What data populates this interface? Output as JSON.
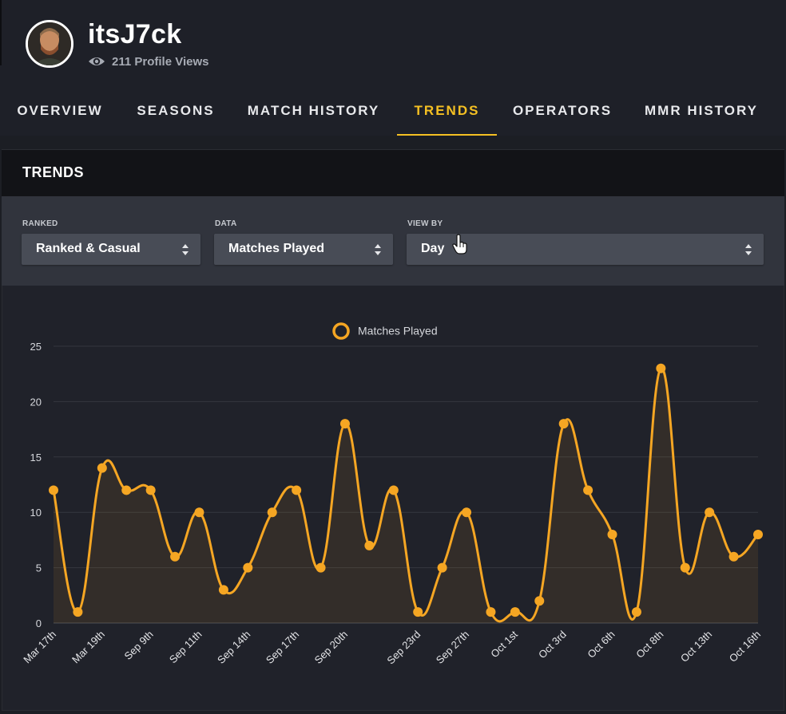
{
  "profile": {
    "username": "itsJ7ck",
    "views_text": "211 Profile Views"
  },
  "tabs": [
    {
      "label": "OVERVIEW",
      "active": false
    },
    {
      "label": "SEASONS",
      "active": false
    },
    {
      "label": "MATCH HISTORY",
      "active": false
    },
    {
      "label": "TRENDS",
      "active": true
    },
    {
      "label": "OPERATORS",
      "active": false
    },
    {
      "label": "MMR HISTORY",
      "active": false
    }
  ],
  "panel": {
    "title": "TRENDS"
  },
  "filters": {
    "ranked": {
      "label": "RANKED",
      "value": "Ranked & Casual"
    },
    "data": {
      "label": "DATA",
      "value": "Matches Played"
    },
    "view_by": {
      "label": "VIEW BY",
      "value": "Day"
    }
  },
  "colors": {
    "accent": "#f5c023",
    "series": "#f5a623"
  },
  "icons": {
    "views": "eye-icon",
    "select": "sort-arrows-icon",
    "cursor": "hand-pointer-icon"
  },
  "chart_data": {
    "type": "line",
    "legend": {
      "entries": [
        "Matches Played"
      ],
      "placement": "top-center"
    },
    "x_tick_labels": [
      "Mar 17th",
      "Mar 19th",
      "Sep 9th",
      "Sep 11th",
      "Sep 14th",
      "Sep 17th",
      "Sep 20th",
      "Sep 23rd",
      "Sep 27th",
      "Oct 1st",
      "Oct 3rd",
      "Oct 6th",
      "Oct 8th",
      "Oct 13th",
      "Oct 16th"
    ],
    "series": [
      {
        "name": "Matches Played",
        "values": [
          12,
          1,
          14,
          12,
          12,
          6,
          10,
          3,
          5,
          10,
          12,
          5,
          18,
          7,
          12,
          1,
          5,
          10,
          1,
          1,
          2,
          18,
          12,
          8,
          1,
          23,
          5,
          10,
          6,
          8
        ]
      }
    ],
    "ylim": [
      0,
      25
    ],
    "yticks": [
      0,
      5,
      10,
      15,
      20,
      25
    ],
    "grid": true,
    "area_fill": true
  }
}
